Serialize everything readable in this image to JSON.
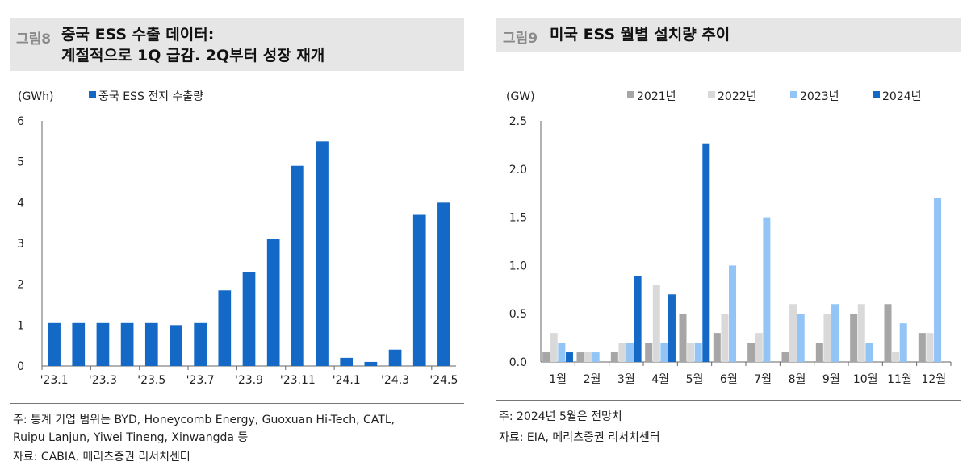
{
  "left": {
    "fig_label": "그림8",
    "title_line1": "중국 ESS 수출 데이터:",
    "title_line2": "계절적으로 1Q 급감. 2Q부터 성장 재개",
    "notes": [
      "주:  통계 기업 범위는 BYD, Honeycomb Energy, Guoxuan Hi-Tech, CATL,",
      "      Ruipu Lanjun, Yiwei Tineng, Xinwangda 등",
      "자료: CABIA, 메리츠증권 리서치센터"
    ]
  },
  "right": {
    "fig_label": "그림9",
    "title": "미국 ESS 월별 설치량 추이",
    "notes": [
      "주: 2024년 5월은 전망치",
      "자료: EIA, 메리츠증권 리서치센터"
    ]
  },
  "chart_data": [
    {
      "type": "bar",
      "title": "중국 ESS 수출 데이터: 계절적으로 1Q 급감. 2Q부터 성장 재개",
      "unit_label": "(GWh)",
      "series_name": "중국 ESS 전지 수출량",
      "color": "#1469c7",
      "categories": [
        "'23.1",
        "'23.2",
        "'23.3",
        "'23.4",
        "'23.5",
        "'23.6",
        "'23.7",
        "'23.8",
        "'23.9",
        "'23.10",
        "'23.11",
        "'23.12",
        "'24.1",
        "'24.2",
        "'24.3",
        "'24.4",
        "'24.5"
      ],
      "tick_labels": [
        "'23.1",
        "'23.3",
        "'23.5",
        "'23.7",
        "'23.9",
        "'23.11",
        "'24.1",
        "'24.3",
        "'24.5"
      ],
      "values": [
        1.05,
        1.05,
        1.05,
        1.05,
        1.05,
        1.0,
        1.05,
        1.85,
        2.3,
        3.1,
        4.9,
        5.5,
        0.2,
        0.1,
        0.4,
        3.7,
        4.0
      ],
      "ylim": [
        0,
        6
      ],
      "yticks": [
        "0",
        "1",
        "2",
        "3",
        "4",
        "5",
        "6"
      ]
    },
    {
      "type": "bar",
      "title": "미국 ESS 월별 설치량 추이",
      "unit_label": "(GW)",
      "categories": [
        "1월",
        "2월",
        "3월",
        "4월",
        "5월",
        "6월",
        "7월",
        "8월",
        "9월",
        "10월",
        "11월",
        "12월"
      ],
      "series": [
        {
          "name": "2021년",
          "color": "#a6a6a6",
          "values": [
            0.1,
            0.1,
            0.1,
            0.2,
            0.5,
            0.3,
            0.2,
            0.1,
            0.2,
            0.5,
            0.6,
            0.3
          ]
        },
        {
          "name": "2022년",
          "color": "#d9d9d9",
          "values": [
            0.3,
            0.1,
            0.2,
            0.8,
            0.2,
            0.5,
            0.3,
            0.6,
            0.5,
            0.6,
            0.1,
            0.3
          ]
        },
        {
          "name": "2023년",
          "color": "#92c5f5",
          "values": [
            0.2,
            0.1,
            0.2,
            0.2,
            0.2,
            1.0,
            1.5,
            0.5,
            0.6,
            0.2,
            0.4,
            1.7
          ]
        },
        {
          "name": "2024년",
          "color": "#1469c7",
          "values": [
            0.1,
            null,
            0.89,
            0.7,
            2.26,
            null,
            null,
            null,
            null,
            null,
            null,
            null
          ]
        }
      ],
      "ylim": [
        0,
        2.5
      ],
      "yticks": [
        "0.0",
        "0.5",
        "1.0",
        "1.5",
        "2.0",
        "2.5"
      ]
    }
  ]
}
